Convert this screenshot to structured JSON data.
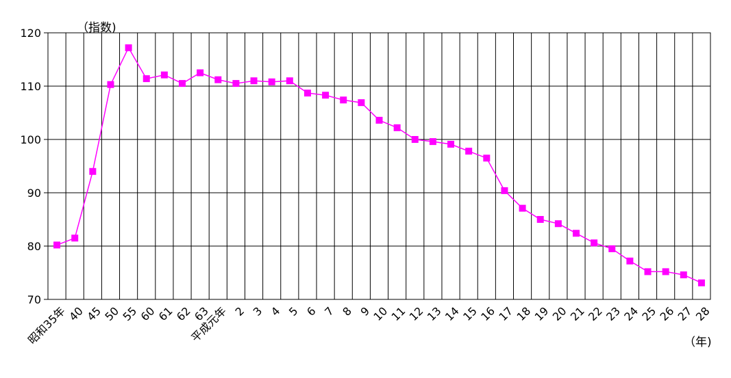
{
  "chart_data": {
    "type": "line",
    "title": "",
    "xlabel": "",
    "ylabel": "",
    "y_unit_label": "（指数)",
    "x_unit_label": "（年)",
    "ylim": [
      70,
      120
    ],
    "yticks": [
      70,
      80,
      90,
      100,
      110,
      120
    ],
    "grid": true,
    "legend": "none",
    "categories": [
      "昭和35年",
      "40",
      "45",
      "50",
      "55",
      "60",
      "61",
      "62",
      "63",
      "平成元年",
      "2",
      "3",
      "4",
      "5",
      "6",
      "7",
      "8",
      "9",
      "10",
      "11",
      "12",
      "13",
      "14",
      "15",
      "16",
      "17",
      "18",
      "19",
      "20",
      "21",
      "22",
      "23",
      "24",
      "25",
      "26",
      "27",
      "28"
    ],
    "series": [
      {
        "values": [
          80.2,
          81.5,
          94.0,
          110.3,
          117.2,
          111.4,
          112.1,
          110.5,
          112.5,
          111.2,
          110.5,
          111.0,
          110.8,
          111.0,
          108.7,
          108.3,
          107.4,
          106.9,
          103.6,
          102.2,
          100.0,
          99.6,
          99.1,
          97.8,
          96.5,
          90.4,
          87.1,
          85.0,
          84.2,
          82.4,
          80.6,
          79.5,
          77.2,
          75.2,
          75.2,
          74.6,
          73.1
        ]
      }
    ],
    "colors": {
      "line": "#ff00ff",
      "marker": "#ff00ff",
      "grid": "#000000"
    }
  }
}
